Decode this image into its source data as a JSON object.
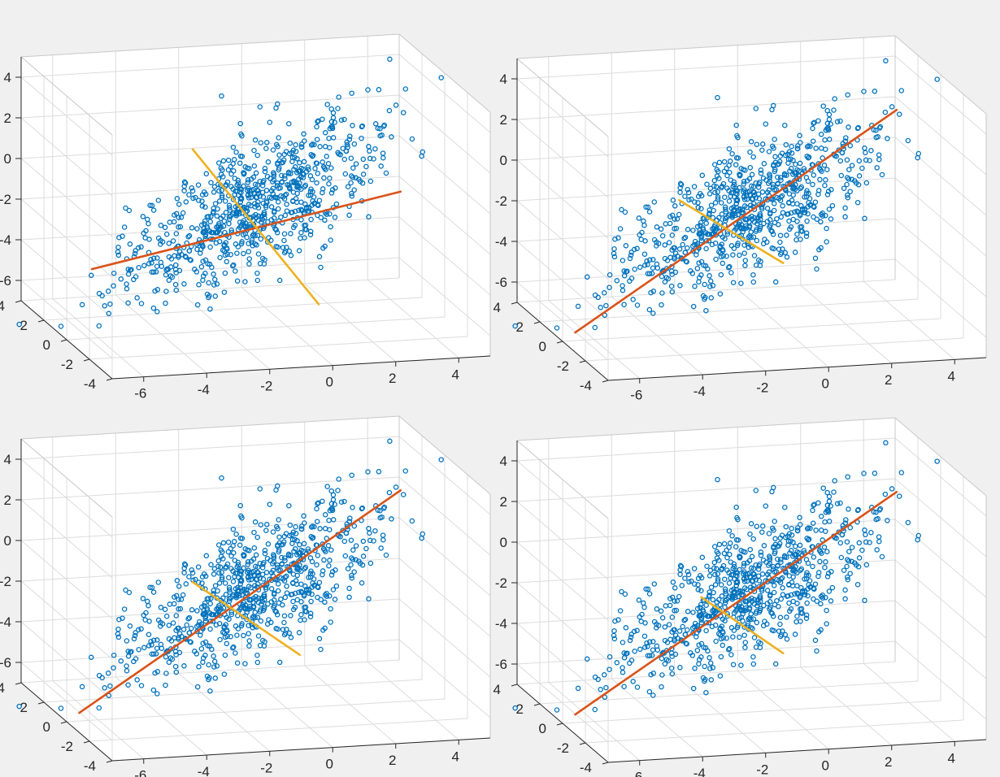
{
  "figure": {
    "background": "#f0f0f0",
    "axes_background": "#ffffff",
    "grid_color": "#dcdcdc",
    "box_color": "#262626",
    "tick_color": "#262626"
  },
  "chart_data": [
    {
      "type": "scatter",
      "panel": "top-left",
      "view": "3d",
      "title": "",
      "xlabel": "",
      "ylabel": "",
      "zlabel": "",
      "grid": true,
      "xlim": [
        -7,
        5
      ],
      "ylim": [
        -4,
        4
      ],
      "zlim": [
        -7,
        5
      ],
      "xticks": [
        "-6",
        "-4",
        "-2",
        "0",
        "2",
        "4"
      ],
      "yticks": [
        "-4",
        "-2",
        "0",
        "2",
        "4"
      ],
      "zticks": [
        "4",
        "2",
        "0",
        "-2",
        "-4",
        "-6"
      ],
      "series": [
        {
          "type": "scatter",
          "marker": "o",
          "color": "#0072bd",
          "n_points": 800,
          "seed": 11,
          "mean": [
            -1,
            0,
            -1
          ],
          "cov": [
            [
              4,
              0,
              3
            ],
            [
              0,
              1.2,
              0
            ],
            [
              3,
              0,
              4
            ]
          ]
        },
        {
          "type": "line",
          "color": "#d95319",
          "x": [
            -6.2,
            3.6
          ],
          "y": [
            0,
            0
          ],
          "z": [
            -3.6,
            -0.7
          ]
        },
        {
          "type": "line",
          "color": "#edb120",
          "x": [
            -3.0,
            1.0
          ],
          "y": [
            0,
            0
          ],
          "z": [
            2.0,
            -6.0
          ]
        }
      ]
    },
    {
      "type": "scatter",
      "panel": "top-right",
      "view": "3d",
      "title": "",
      "xlabel": "",
      "ylabel": "",
      "zlabel": "",
      "grid": true,
      "xlim": [
        -7,
        5
      ],
      "ylim": [
        -4,
        4
      ],
      "zlim": [
        -7,
        5
      ],
      "xticks": [
        "-6",
        "-4",
        "-2",
        "0",
        "2",
        "4"
      ],
      "yticks": [
        "-4",
        "-2",
        "0",
        "2",
        "4"
      ],
      "zticks": [
        "4",
        "2",
        "0",
        "-2",
        "-4",
        "-6"
      ],
      "series": [
        {
          "type": "scatter",
          "marker": "o",
          "color": "#0072bd",
          "n_points": 800,
          "seed": 11,
          "mean": [
            -1,
            0,
            -1
          ],
          "cov": [
            [
              4,
              0,
              3
            ],
            [
              0,
              1.2,
              0
            ],
            [
              3,
              0,
              4
            ]
          ]
        },
        {
          "type": "line",
          "color": "#d95319",
          "x": [
            -6.6,
            3.6
          ],
          "y": [
            0,
            0
          ],
          "z": [
            -6.6,
            3.4
          ]
        },
        {
          "type": "line",
          "color": "#edb120",
          "x": [
            -3.3,
            0.0
          ],
          "y": [
            0,
            0
          ],
          "z": [
            -0.4,
            -3.8
          ]
        }
      ]
    },
    {
      "type": "scatter",
      "panel": "bottom-left",
      "view": "3d",
      "title": "",
      "xlabel": "",
      "ylabel": "",
      "zlabel": "",
      "grid": true,
      "xlim": [
        -7,
        5
      ],
      "ylim": [
        -4,
        4
      ],
      "zlim": [
        -7,
        5
      ],
      "xticks": [
        "-6",
        "-4",
        "-2",
        "0",
        "2",
        "4"
      ],
      "yticks": [
        "-4",
        "-2",
        "0",
        "2",
        "4"
      ],
      "zticks": [
        "4",
        "2",
        "0",
        "-2",
        "-4",
        "-6"
      ],
      "series": [
        {
          "type": "scatter",
          "marker": "o",
          "color": "#0072bd",
          "n_points": 800,
          "seed": 11,
          "mean": [
            -1,
            0,
            -1
          ],
          "cov": [
            [
              4,
              0,
              3
            ],
            [
              0,
              1.2,
              0
            ],
            [
              3,
              0,
              4
            ]
          ]
        },
        {
          "type": "line",
          "color": "#d95319",
          "x": [
            -6.6,
            3.6
          ],
          "y": [
            0,
            0
          ],
          "z": [
            -6.6,
            3.4
          ]
        },
        {
          "type": "line",
          "color": "#edb120",
          "x": [
            -3.0,
            0.4
          ],
          "y": [
            0,
            0
          ],
          "z": [
            -0.5,
            -4.4
          ]
        }
      ]
    },
    {
      "type": "scatter",
      "panel": "bottom-right",
      "view": "3d",
      "title": "",
      "xlabel": "",
      "ylabel": "",
      "zlabel": "",
      "grid": true,
      "xlim": [
        -7,
        5
      ],
      "ylim": [
        -4,
        4
      ],
      "zlim": [
        -7,
        5
      ],
      "xticks": [
        "-6",
        "-4",
        "-2",
        "0",
        "2",
        "4"
      ],
      "yticks": [
        "-4",
        "-2",
        "0",
        "2",
        "4"
      ],
      "zticks": [
        "4",
        "2",
        "0",
        "-2",
        "-4",
        "-6"
      ],
      "series": [
        {
          "type": "scatter",
          "marker": "o",
          "color": "#0072bd",
          "n_points": 800,
          "seed": 11,
          "mean": [
            -1,
            0,
            -1
          ],
          "cov": [
            [
              4,
              0,
              3
            ],
            [
              0,
              1.2,
              0
            ],
            [
              3,
              0,
              4
            ]
          ]
        },
        {
          "type": "line",
          "color": "#d95319",
          "x": [
            -6.6,
            3.6
          ],
          "y": [
            0,
            0
          ],
          "z": [
            -6.6,
            3.4
          ]
        },
        {
          "type": "line",
          "color": "#edb120",
          "x": [
            -2.6,
            0.0
          ],
          "y": [
            0,
            0
          ],
          "z": [
            -1.2,
            -4.2
          ]
        }
      ]
    }
  ]
}
